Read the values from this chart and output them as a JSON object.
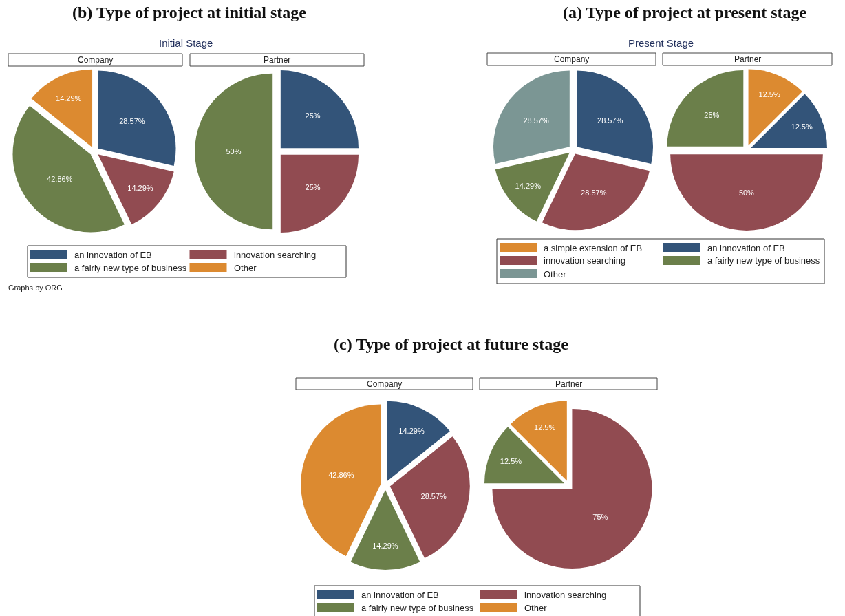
{
  "chart_data": [
    {
      "type": "pie",
      "title": "(b) Type of project at initial stage",
      "subtitle": "Initial Stage",
      "annotations": [
        "Graphs by ORG"
      ],
      "categories": [
        "an innovation of EB",
        "innovation searching",
        "a fairly new type of business",
        "Other"
      ],
      "colors": [
        "#335479",
        "#914b51",
        "#6b7f4a",
        "#dc8a30"
      ],
      "legend": "bottom",
      "series": [
        {
          "name": "Company",
          "values": [
            28.57,
            14.29,
            42.86,
            14.29
          ],
          "value_labels": [
            "28.57%",
            "14.29%",
            "42.86%",
            "14.29%"
          ]
        },
        {
          "name": "Partner",
          "values": [
            25,
            25,
            50,
            null
          ],
          "value_labels": [
            "25%",
            "25%",
            "50%",
            null
          ]
        }
      ]
    },
    {
      "type": "pie",
      "title": "(a) Type of project at present stage",
      "subtitle": "Present Stage",
      "categories": [
        "a simple extension of EB",
        "an innovation of EB",
        "innovation searching",
        "a fairly new type of business",
        "Other"
      ],
      "colors": [
        "#dc8a30",
        "#335479",
        "#914b51",
        "#6b7f4a",
        "#7b9694"
      ],
      "legend": "bottom",
      "series": [
        {
          "name": "Company",
          "values": [
            null,
            28.57,
            28.57,
            14.29,
            28.57
          ],
          "value_labels": [
            null,
            "28.57%",
            "28.57%",
            "14.29%",
            "28.57%"
          ]
        },
        {
          "name": "Partner",
          "values": [
            12.5,
            12.5,
            50,
            25,
            null
          ],
          "value_labels": [
            "12.5%",
            "12.5%",
            "50%",
            "25%",
            null
          ]
        }
      ]
    },
    {
      "type": "pie",
      "title": "(c) Type of project at future stage",
      "categories": [
        "an innovation of EB",
        "innovation searching",
        "a fairly new type of business",
        "Other"
      ],
      "colors": [
        "#335479",
        "#914b51",
        "#6b7f4a",
        "#dc8a30"
      ],
      "legend": "bottom",
      "series": [
        {
          "name": "Company",
          "values": [
            14.29,
            28.57,
            14.29,
            42.86
          ],
          "value_labels": [
            "14.29%",
            "28.57%",
            "14.29%",
            "42.86%"
          ]
        },
        {
          "name": "Partner",
          "values": [
            null,
            75,
            12.5,
            12.5
          ],
          "value_labels": [
            null,
            "75%",
            "12.5%",
            "12.5%"
          ]
        }
      ]
    }
  ]
}
